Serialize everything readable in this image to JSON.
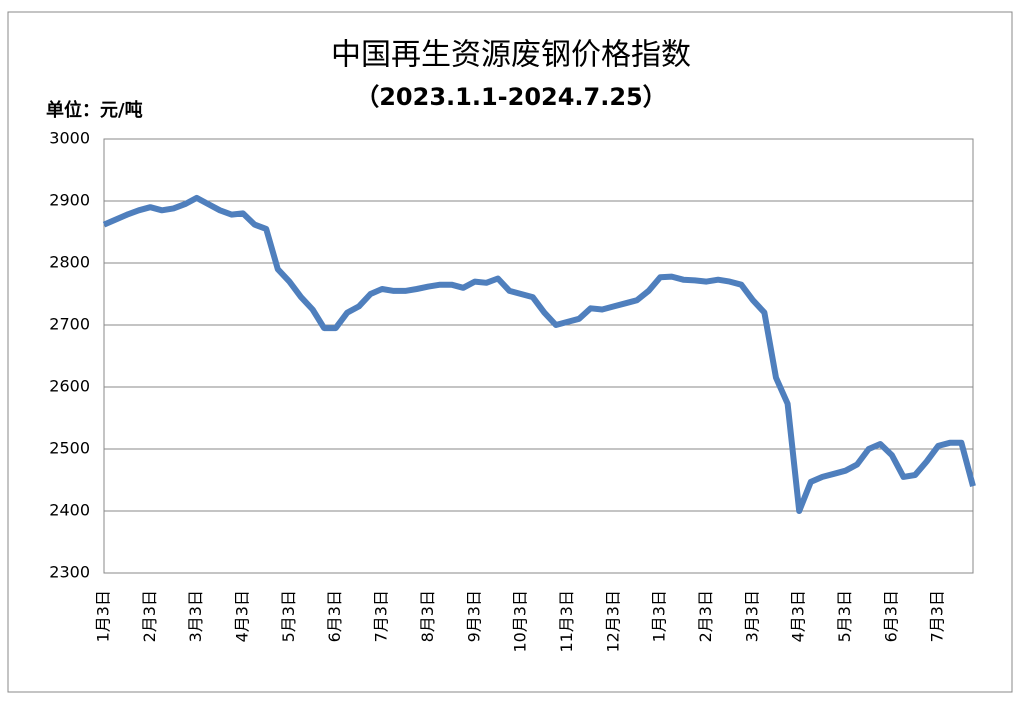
{
  "chart_data": {
    "type": "line",
    "title": "中国再生资源废钢价格指数",
    "subtitle": "（2023.1.1-2024.7.25）",
    "y_unit": "单位：元/吨",
    "categories": [
      "1月3日",
      null,
      null,
      null,
      "2月3日",
      null,
      null,
      null,
      "3月3日",
      null,
      null,
      null,
      "4月3日",
      null,
      null,
      null,
      "5月3日",
      null,
      null,
      null,
      "6月3日",
      null,
      null,
      null,
      "7月3日",
      null,
      null,
      null,
      "8月3日",
      null,
      null,
      null,
      "9月3日",
      null,
      null,
      null,
      "10月3日",
      null,
      null,
      null,
      "11月3日",
      null,
      null,
      null,
      "12月3日",
      null,
      null,
      null,
      "1月3日",
      null,
      null,
      null,
      "2月3日",
      null,
      null,
      null,
      "3月3日",
      null,
      null,
      null,
      "4月3日",
      null,
      null,
      null,
      "5月3日",
      null,
      null,
      null,
      "6月3日",
      null,
      null,
      null,
      "7月3日",
      null,
      null,
      null
    ],
    "values": [
      2862,
      2870,
      2878,
      2885,
      2890,
      2885,
      2888,
      2895,
      2905,
      2895,
      2885,
      2878,
      2880,
      2862,
      2855,
      2790,
      2770,
      2745,
      2725,
      2695,
      2695,
      2720,
      2730,
      2750,
      2758,
      2755,
      2755,
      2758,
      2762,
      2765,
      2765,
      2760,
      2770,
      2768,
      2775,
      2755,
      2750,
      2745,
      2720,
      2700,
      2705,
      2710,
      2727,
      2725,
      2730,
      2735,
      2740,
      2755,
      2777,
      2778,
      2773,
      2772,
      2770,
      2773,
      2770,
      2765,
      2740,
      2720,
      2615,
      2573,
      2400,
      2447,
      2455,
      2460,
      2465,
      2475,
      2500,
      2508,
      2490,
      2455,
      2458,
      2480,
      2505,
      2510,
      2510,
      2440
    ],
    "color": "#4f7fbd",
    "ylim": [
      2300,
      3000
    ],
    "yticks": [
      2300,
      2400,
      2500,
      2600,
      2700,
      2800,
      2900,
      3000
    ],
    "grid": true
  }
}
